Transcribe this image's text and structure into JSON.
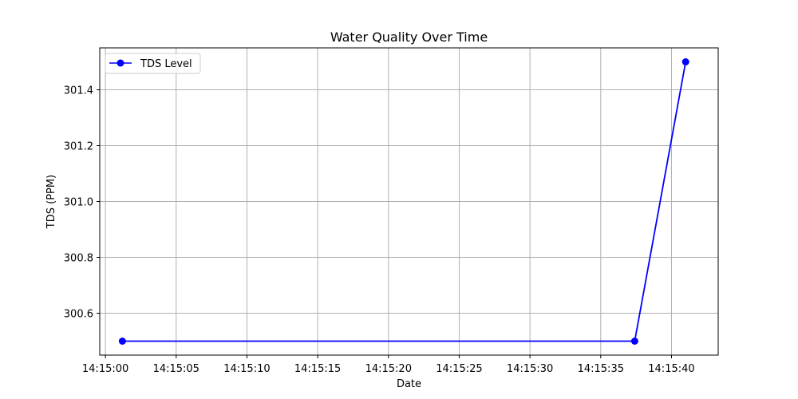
{
  "chart_data": {
    "type": "line",
    "title": "Water Quality Over Time",
    "xlabel": "Date",
    "ylabel": "TDS (PPM)",
    "x_ticks": [
      "14:15:00",
      "14:15:05",
      "14:15:10",
      "14:15:15",
      "14:15:20",
      "14:15:25",
      "14:15:30",
      "14:15:35",
      "14:15:40"
    ],
    "y_ticks": [
      "300.6",
      "300.8",
      "301.0",
      "301.2",
      "301.4"
    ],
    "xlim": [
      "14:14:59.6",
      "14:15:43.3"
    ],
    "ylim": [
      300.45,
      301.55
    ],
    "grid": true,
    "legend_position": "top-left",
    "series": [
      {
        "name": "TDS Level",
        "color": "#0000ff",
        "marker": "circle",
        "x": [
          "14:15:01.2",
          "14:15:37.4",
          "14:15:41.0"
        ],
        "y": [
          300.5,
          300.5,
          301.5
        ]
      }
    ]
  }
}
